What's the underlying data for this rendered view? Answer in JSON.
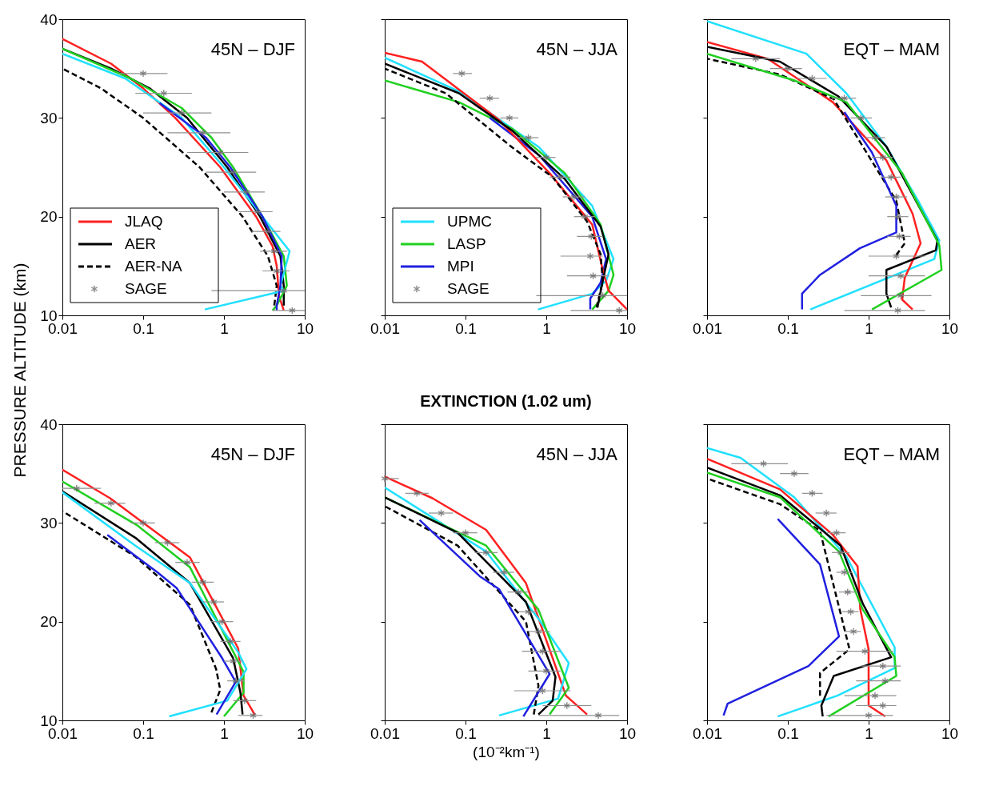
{
  "chart_data": [
    {
      "type": "line",
      "annotations": [
        "45N – DJF"
      ],
      "ylabel": "PRESSURE ALTITUDE (km)",
      "log": "x",
      "xlim": [
        0.01,
        10
      ],
      "xticks": [
        0.01,
        0.1,
        1,
        10
      ],
      "ylim": [
        10,
        40
      ],
      "yticks": [
        10,
        20,
        30,
        40
      ],
      "legend": "bottom left",
      "series": [
        {
          "name": "JLAQ",
          "color": "#ff2020",
          "x": [
            0.01,
            0.04,
            0.1,
            0.25,
            0.9,
            2.5,
            4,
            4.5,
            4.8,
            5.5
          ],
          "values": [
            38,
            35.5,
            33,
            30,
            25,
            20,
            17,
            15,
            12,
            10.5
          ]
        },
        {
          "name": "AER",
          "color": "#000000",
          "x": [
            0.01,
            0.04,
            0.12,
            0.35,
            1.1,
            2.8,
            5,
            5.5,
            5.5
          ],
          "values": [
            37,
            35,
            33,
            30,
            25,
            20,
            16,
            13,
            11
          ]
        },
        {
          "name": "AER-NA",
          "color": "#000000",
          "line_style": "dashed",
          "x": [
            0.01,
            0.03,
            0.1,
            0.5,
            1.7,
            3.5,
            4.5,
            4.2
          ],
          "values": [
            35,
            33,
            30,
            25,
            20,
            16,
            13,
            11
          ]
        },
        {
          "color": "#20d020",
          "x": [
            0.01,
            0.07,
            0.3,
            0.7,
            1.3,
            3,
            5.5,
            6,
            4.5,
            4
          ],
          "values": [
            37,
            34,
            31,
            28,
            25,
            20,
            16,
            13,
            11,
            10.5
          ]
        },
        {
          "color": "#20e0ff",
          "x": [
            0.01,
            0.06,
            0.3,
            1,
            3,
            6.5,
            5,
            5.5,
            0.58
          ],
          "values": [
            36.5,
            34,
            30,
            25,
            20,
            16.5,
            13,
            12.5,
            10.6
          ]
        },
        {
          "color": "#2020e0",
          "x": [
            0.16,
            0.6,
            1.2,
            3,
            5.2,
            5,
            4.5,
            4.5
          ],
          "values": [
            31.5,
            28,
            25,
            20,
            16,
            13,
            11,
            10.5
          ]
        },
        {
          "name": "SAGE",
          "type": "scatter",
          "marker": "cross",
          "color": "#606060",
          "x": [
            0.1,
            0.18,
            0.3,
            0.55,
            0.9,
            1.3,
            1.9,
            2.6,
            3.5,
            4.2,
            4.5,
            5.5,
            7
          ],
          "values": [
            34.5,
            32.5,
            30.5,
            28.5,
            26.5,
            24.5,
            22.5,
            20.5,
            18.5,
            16.5,
            14.5,
            12.5,
            10.5
          ],
          "xerrors": [
            [
              0.05,
              0.2
            ],
            [
              0.08,
              0.4
            ],
            [
              0.1,
              0.7
            ],
            [
              0.2,
              1.2
            ],
            [
              0.35,
              2
            ],
            [
              0.6,
              2.5
            ],
            [
              1,
              3.2
            ],
            [
              1.5,
              4
            ],
            [
              2.2,
              5
            ],
            [
              2.8,
              6
            ],
            [
              3,
              6.5
            ],
            [
              0.7,
              10
            ],
            [
              4,
              10
            ]
          ]
        }
      ]
    },
    {
      "type": "line",
      "annotations": [
        "45N – JJA"
      ],
      "log": "x",
      "xlim": [
        0.01,
        10
      ],
      "xticks": [
        0.01,
        0.1,
        1,
        10
      ],
      "ylim": [
        10,
        40
      ],
      "yticks": [
        10,
        20,
        30,
        40
      ],
      "tick_labels": "x",
      "legend": "bottom left",
      "series": [
        {
          "name": "UPMC",
          "color": "#20e0ff",
          "x": [
            0.01,
            0.083,
            0.82,
            3.7,
            6.8,
            5.5,
            3.7,
            0.79
          ],
          "values": [
            36.1,
            32.7,
            27,
            21.1,
            15.7,
            13.5,
            12.2,
            10.6
          ]
        },
        {
          "name": "LASP",
          "color": "#20d020",
          "x": [
            0.01,
            0.083,
            0.38,
            1.7,
            4.7,
            6.8,
            5.9,
            3.7
          ],
          "values": [
            33.8,
            31.6,
            28.9,
            24.4,
            19.2,
            14.1,
            12.5,
            10.6
          ]
        },
        {
          "name": "MPI",
          "color": "#2020e0",
          "x": [
            0.2,
            0.82,
            3.7,
            5.5,
            4.7,
            3.5,
            3.5
          ],
          "values": [
            30,
            26.2,
            20,
            15.7,
            13.3,
            11.7,
            10.6
          ]
        },
        {
          "color": "#ff2020",
          "x": [
            0.01,
            0.029,
            0.26,
            1.1,
            3.7,
            5,
            5.9,
            10
          ],
          "values": [
            36.6,
            35.7,
            29.8,
            24.4,
            19.2,
            14.6,
            12.5,
            10.6
          ]
        },
        {
          "color": "#000000",
          "x": [
            0.01,
            0.083,
            0.38,
            1.7,
            4.7,
            5.9,
            5,
            4.3
          ],
          "values": [
            35.5,
            32.5,
            28.7,
            23.8,
            19,
            16.2,
            13.5,
            10.8
          ]
        },
        {
          "color": "#000000",
          "line_style": "dashed",
          "x": [
            0.01,
            0.057,
            0.38,
            1.2,
            3.2,
            4.7,
            5,
            4.2
          ],
          "values": [
            35,
            32.5,
            27,
            24,
            19.5,
            16.2,
            13.5,
            10.8
          ]
        },
        {
          "name": "SAGE",
          "type": "scatter",
          "marker": "cross",
          "color": "#606060",
          "x": [
            0.09,
            0.2,
            0.35,
            0.6,
            1,
            1.5,
            2.2,
            3,
            3.6,
            3.5,
            3.8,
            5,
            8
          ],
          "values": [
            34.5,
            32,
            30,
            28,
            26,
            24,
            22,
            20,
            18,
            16,
            14,
            12,
            10.5
          ],
          "xerrors": [
            [
              0.07,
              0.12
            ],
            [
              0.15,
              0.26
            ],
            [
              0.27,
              0.45
            ],
            [
              0.45,
              0.8
            ],
            [
              0.75,
              1.3
            ],
            [
              1.1,
              2
            ],
            [
              1.6,
              3
            ],
            [
              2.2,
              4
            ],
            [
              2.4,
              5
            ],
            [
              1.5,
              5
            ],
            [
              1.8,
              6
            ],
            [
              0.75,
              10
            ],
            [
              2,
              10
            ]
          ]
        }
      ]
    },
    {
      "type": "line",
      "annotations": [
        "EQT – MAM"
      ],
      "log": "x",
      "xlim": [
        0.01,
        10
      ],
      "xticks": [
        0.01,
        0.1,
        1,
        10
      ],
      "ylim": [
        10,
        40
      ],
      "yticks": [
        10,
        20,
        30,
        40
      ],
      "tick_labels": "x",
      "series": [
        {
          "color": "#20e0ff",
          "x": [
            0.01,
            0.17,
            0.53,
            1.66,
            4.1,
            7.5,
            6.5,
            0.19
          ],
          "values": [
            39.8,
            36.5,
            32.5,
            27.1,
            21.6,
            17.6,
            15.7,
            10.6
          ]
        },
        {
          "color": "#ff2020",
          "x": [
            0.01,
            0.056,
            0.36,
            1.66,
            3.5,
            4.4,
            2.8,
            2.6,
            3.5
          ],
          "values": [
            37.7,
            36,
            31.6,
            25.7,
            20.3,
            17.3,
            13.8,
            11.6,
            10.6
          ]
        },
        {
          "color": "#000000",
          "x": [
            0.01,
            0.08,
            0.42,
            1.66,
            7.1,
            6.8,
            1.66,
            1.66,
            1.9
          ],
          "values": [
            37.2,
            35.7,
            32.2,
            27.1,
            17.6,
            16.6,
            14.6,
            12.2,
            10.8
          ]
        },
        {
          "color": "#000000",
          "line_style": "dashed",
          "x": [
            0.01,
            0.08,
            0.37,
            2.2,
            2.8,
            2.2
          ],
          "values": [
            36,
            34.4,
            31.9,
            21.6,
            17.3,
            16.1
          ]
        },
        {
          "color": "#20d020",
          "x": [
            0.01,
            0.12,
            0.53,
            2.6,
            7.5,
            8,
            1.1
          ],
          "values": [
            36.5,
            33.8,
            31.6,
            24.4,
            17.1,
            14.6,
            10.6
          ]
        },
        {
          "color": "#2020e0",
          "x": [
            0.5,
            1.1,
            2.2,
            2.2,
            0.78,
            0.25,
            0.15,
            0.15
          ],
          "values": [
            30.6,
            26.5,
            21.1,
            18.4,
            16.8,
            14.1,
            12.2,
            10.6
          ]
        },
        {
          "type": "scatter",
          "marker": "cross",
          "color": "#606060",
          "x": [
            0.04,
            0.1,
            0.2,
            0.5,
            0.8,
            1.2,
            1.5,
            1.9,
            2.2,
            2.3,
            2.4,
            2.2,
            2.5,
            2.5,
            2.3
          ],
          "values": [
            36,
            35,
            34,
            32,
            30,
            28,
            26,
            24,
            22,
            20,
            18,
            16,
            14,
            12,
            10.5
          ],
          "xerrors": [
            [
              0.02,
              0.08
            ],
            [
              0.06,
              0.15
            ],
            [
              0.13,
              0.3
            ],
            [
              0.35,
              0.7
            ],
            [
              0.6,
              1.1
            ],
            [
              0.9,
              1.6
            ],
            [
              1.1,
              2
            ],
            [
              1.4,
              2.5
            ],
            [
              1.6,
              3
            ],
            [
              1.7,
              3.1
            ],
            [
              1.7,
              3.3
            ],
            [
              1,
              5
            ],
            [
              1,
              5
            ],
            [
              0.8,
              6
            ],
            [
              0.5,
              5
            ]
          ]
        }
      ]
    },
    {
      "type": "line",
      "annotations": [
        "45N – DJF"
      ],
      "log": "x",
      "xlim": [
        0.01,
        10
      ],
      "xticks": [
        0.01,
        0.1,
        1,
        10
      ],
      "ylim": [
        10,
        40
      ],
      "yticks": [
        10,
        20,
        30,
        40
      ],
      "series": [
        {
          "color": "#ff2020",
          "x": [
            0.01,
            0.039,
            0.38,
            1.5,
            1.75,
            2.4
          ],
          "values": [
            35.4,
            32.5,
            26.5,
            17.3,
            12.5,
            10.6
          ]
        },
        {
          "color": "#20d020",
          "x": [
            0.01,
            0.083,
            0.38,
            1.75,
            1.75,
            1
          ],
          "values": [
            34.2,
            29.8,
            25.5,
            14.9,
            12.8,
            10.4
          ]
        },
        {
          "color": "#000000",
          "x": [
            0.01,
            0.08,
            0.38,
            1.3,
            1.6,
            1.7
          ],
          "values": [
            33.2,
            28.5,
            23.9,
            16.3,
            12.8,
            10.6
          ]
        },
        {
          "color": "#000000",
          "line_style": "dashed",
          "x": [
            0.01,
            0.08,
            0.38,
            0.8,
            0.9,
            0.7
          ],
          "values": [
            31.2,
            26.6,
            21.7,
            15.2,
            13.1,
            10.8
          ]
        },
        {
          "color": "#20e0ff",
          "x": [
            0.01,
            0.08,
            0.38,
            1.5,
            1.9,
            1.1,
            0.21
          ],
          "values": [
            33.1,
            27.7,
            23.9,
            16.9,
            15.2,
            12,
            10.4
          ]
        },
        {
          "color": "#2020e0",
          "x": [
            0.036,
            0.15,
            0.26,
            0.95,
            1.4,
            0.81
          ],
          "values": [
            28.8,
            25,
            23.4,
            16.3,
            13.9,
            10.6
          ]
        },
        {
          "type": "scatter",
          "marker": "cross",
          "color": "#606060",
          "x": [
            0.015,
            0.04,
            0.1,
            0.2,
            0.35,
            0.55,
            0.75,
            0.95,
            1.2,
            1.3,
            1.4,
            1.8,
            2.3
          ],
          "values": [
            33.5,
            32,
            30,
            28,
            26,
            24,
            22,
            20,
            18,
            16,
            14,
            12,
            10.5
          ],
          "xerrors": [
            [
              0.01,
              0.03
            ],
            [
              0.025,
              0.06
            ],
            [
              0.07,
              0.14
            ],
            [
              0.14,
              0.28
            ],
            [
              0.25,
              0.5
            ],
            [
              0.4,
              0.75
            ],
            [
              0.55,
              1
            ],
            [
              0.7,
              1.3
            ],
            [
              0.9,
              1.6
            ],
            [
              1,
              1.7
            ],
            [
              1.1,
              1.8
            ],
            [
              1.3,
              2.5
            ],
            [
              1.5,
              3
            ]
          ]
        }
      ]
    },
    {
      "type": "line",
      "title": "EXTINCTION (1.02 um)",
      "xlabel": "(10⁻²km⁻¹)",
      "annotations": [
        "45N – JJA"
      ],
      "log": "x",
      "xlim": [
        0.01,
        10
      ],
      "xticks": [
        0.01,
        0.1,
        1,
        10
      ],
      "ylim": [
        10,
        40
      ],
      "yticks": [
        10,
        20,
        30,
        40
      ],
      "tick_labels": "x",
      "series": [
        {
          "color": "#ff2020",
          "x": [
            0.01,
            0.039,
            0.18,
            0.56,
            1.2,
            1.75,
            3.2
          ],
          "values": [
            34.7,
            32.5,
            29.3,
            23.9,
            16.3,
            12.5,
            10.6
          ]
        },
        {
          "color": "#20e0ff",
          "x": [
            0.01,
            0.18,
            0.8,
            1.9,
            1.4,
            0.26
          ],
          "values": [
            33.6,
            27.1,
            20.3,
            15.8,
            12.2,
            10.5
          ]
        },
        {
          "color": "#20d020",
          "x": [
            0.01,
            0.18,
            0.8,
            1.9,
            1.1
          ],
          "values": [
            32.6,
            27.7,
            21.2,
            13.3,
            10.6
          ]
        },
        {
          "color": "#000000",
          "x": [
            0.01,
            0.08,
            0.56,
            1.3,
            1.2,
            0.8
          ],
          "values": [
            32.6,
            29,
            22,
            14.4,
            12,
            10.6
          ]
        },
        {
          "color": "#000000",
          "line_style": "dashed",
          "x": [
            0.01,
            0.08,
            0.56,
            0.8,
            0.7
          ],
          "values": [
            31.7,
            27.7,
            20,
            13.5,
            10.6
          ]
        },
        {
          "color": "#2020e0",
          "x": [
            0.027,
            0.15,
            0.26,
            1.1,
            0.52
          ],
          "values": [
            30.3,
            24.6,
            23.3,
            14.7,
            10.4
          ]
        },
        {
          "type": "scatter",
          "marker": "cross",
          "color": "#606060",
          "x": [
            0.01,
            0.025,
            0.05,
            0.1,
            0.18,
            0.3,
            0.45,
            0.6,
            0.8,
            0.9,
            1,
            0.9,
            1.8,
            4.4
          ],
          "values": [
            34.5,
            33,
            31,
            29,
            27,
            25,
            23,
            21,
            19,
            17,
            15,
            13,
            11.5,
            10.5
          ],
          "xerrors": [
            [
              0.01,
              0.015
            ],
            [
              0.018,
              0.035
            ],
            [
              0.035,
              0.07
            ],
            [
              0.07,
              0.14
            ],
            [
              0.13,
              0.25
            ],
            [
              0.22,
              0.4
            ],
            [
              0.33,
              0.6
            ],
            [
              0.45,
              0.8
            ],
            [
              0.6,
              1.1
            ],
            [
              0.5,
              1.5
            ],
            [
              0.6,
              1.5
            ],
            [
              0.4,
              2
            ],
            [
              0.9,
              3.6
            ],
            [
              0.8,
              8
            ]
          ]
        }
      ]
    },
    {
      "type": "line",
      "annotations": [
        "EQT – MAM"
      ],
      "log": "x",
      "xlim": [
        0.01,
        10
      ],
      "xticks": [
        0.01,
        0.1,
        1,
        10
      ],
      "ylim": [
        10,
        40
      ],
      "yticks": [
        10,
        20,
        30,
        40
      ],
      "tick_labels": "x",
      "series": [
        {
          "color": "#20e0ff",
          "x": [
            0.01,
            0.026,
            0.12,
            0.53,
            2.1,
            2.1,
            0.41,
            0.075
          ],
          "values": [
            37.6,
            36.6,
            32.6,
            26.6,
            17.4,
            15.3,
            12.5,
            10.4
          ]
        },
        {
          "color": "#ff2020",
          "x": [
            0.01,
            0.08,
            0.36,
            0.73,
            0.79,
            1,
            1,
            1.6
          ],
          "values": [
            36.5,
            33.4,
            28.8,
            25.6,
            21.2,
            17.2,
            11.5,
            10.4
          ]
        },
        {
          "color": "#000000",
          "x": [
            0.01,
            0.08,
            0.45,
            0.85,
            1.9,
            0.37,
            0.26,
            0.27
          ],
          "values": [
            35.6,
            32.8,
            27.7,
            21.8,
            16.4,
            14.5,
            11.5,
            10.4
          ]
        },
        {
          "color": "#000000",
          "line_style": "dashed",
          "x": [
            0.01,
            0.08,
            0.25,
            0.58,
            0.25,
            0.25
          ],
          "values": [
            34.5,
            31.9,
            29.2,
            17.2,
            14.8,
            12.5
          ]
        },
        {
          "color": "#20d020",
          "x": [
            0.01,
            0.08,
            0.43,
            0.85,
            2.1,
            2.2,
            0.32
          ],
          "values": [
            35.1,
            32.6,
            27.1,
            21.2,
            16.4,
            14.5,
            10.4
          ]
        },
        {
          "color": "#2020e0",
          "x": [
            0.075,
            0.25,
            0.43,
            0.18,
            0.018,
            0.016
          ],
          "values": [
            30.4,
            25.8,
            18.5,
            15.5,
            11.7,
            10.5
          ]
        },
        {
          "type": "scatter",
          "marker": "cross",
          "color": "#606060",
          "x": [
            0.05,
            0.12,
            0.2,
            0.3,
            0.4,
            0.45,
            0.5,
            0.55,
            0.6,
            0.65,
            0.9,
            1.5,
            1.6,
            1.2,
            1.5,
            1
          ],
          "values": [
            36,
            35,
            33,
            31,
            29,
            27,
            25,
            23,
            21,
            19,
            17,
            15.5,
            14,
            12.5,
            11.5,
            10.5
          ],
          "xerrors": [
            [
              0.02,
              0.1
            ],
            [
              0.08,
              0.18
            ],
            [
              0.15,
              0.27
            ],
            [
              0.22,
              0.4
            ],
            [
              0.3,
              0.52
            ],
            [
              0.35,
              0.58
            ],
            [
              0.4,
              0.63
            ],
            [
              0.43,
              0.7
            ],
            [
              0.47,
              0.75
            ],
            [
              0.5,
              0.8
            ],
            [
              0.4,
              2
            ],
            [
              0.8,
              2.5
            ],
            [
              0.7,
              2.5
            ],
            [
              0.5,
              2.2
            ],
            [
              0.7,
              2.2
            ],
            [
              0.3,
              2
            ]
          ]
        }
      ]
    }
  ]
}
